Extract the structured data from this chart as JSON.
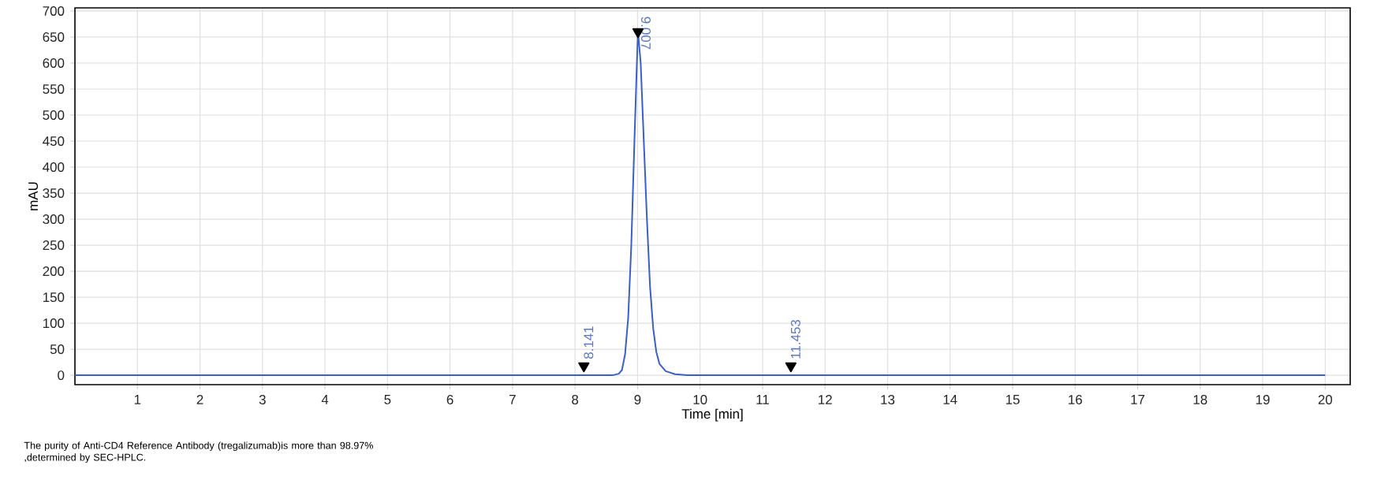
{
  "chart_data": {
    "type": "line",
    "xlabel": "Time [min]",
    "ylabel": "mAU",
    "series": [
      {
        "color": "#3a5fc8",
        "x": [
          0,
          2,
          4,
          6,
          8,
          8.141,
          8.6,
          8.7,
          8.75,
          8.8,
          8.85,
          8.9,
          8.95,
          9.0,
          9.007,
          9.05,
          9.1,
          9.15,
          9.2,
          9.25,
          9.3,
          9.35,
          9.45,
          9.6,
          9.8,
          11.453,
          14,
          17,
          20
        ],
        "values": [
          0,
          0,
          0,
          0,
          0,
          0,
          0,
          3,
          10,
          40,
          110,
          250,
          450,
          640,
          660,
          600,
          450,
          300,
          170,
          90,
          45,
          22,
          8,
          2,
          0,
          0,
          0,
          0,
          0
        ]
      },
      {
        "type": "scatter",
        "marker": "triangle",
        "color": "#000000",
        "x": [
          8.141,
          9.007,
          11.453
        ],
        "values": [
          18,
          660,
          18
        ]
      }
    ],
    "xlim": [
      0,
      20.4
    ],
    "ylim": [
      -18,
      706
    ],
    "xticks": [
      1,
      2,
      3,
      4,
      5,
      6,
      7,
      8,
      9,
      10,
      11,
      12,
      13,
      14,
      15,
      16,
      17,
      18,
      19,
      20
    ],
    "yticks": [
      0,
      50,
      100,
      150,
      200,
      250,
      300,
      350,
      400,
      450,
      500,
      550,
      600,
      650,
      700
    ],
    "grid": true,
    "marker": "none",
    "line_style": "solid",
    "annotations": [
      {
        "text": "8.141",
        "x": 8.141,
        "y": 0
      },
      {
        "text": "9.007",
        "x": 9.007,
        "y": 660
      },
      {
        "text": "11.453",
        "x": 11.453,
        "y": 0
      },
      "The purity of Anti-CD4 Reference Antibody (tregalizumab)is more than 98.97% ,determined by SEC-HPLC."
    ]
  }
}
